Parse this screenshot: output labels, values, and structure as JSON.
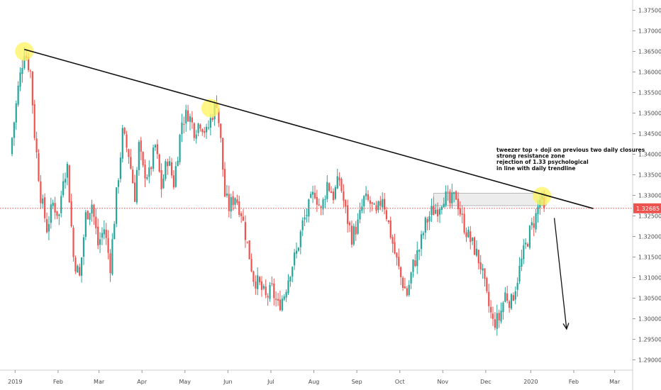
{
  "chart_data": {
    "type": "candlestick",
    "instrument_note": "",
    "x_ticks": [
      "2019",
      "Feb",
      "Mar",
      "Apr",
      "May",
      "Jun",
      "Jul",
      "Aug",
      "Sep",
      "Oct",
      "Nov",
      "Dec",
      "2020",
      "Feb",
      "Mar"
    ],
    "y_ticks": [
      "1.29000",
      "1.29500",
      "1.30000",
      "1.30500",
      "1.31000",
      "1.31500",
      "1.32000",
      "1.32500",
      "1.33000",
      "1.33500",
      "1.34000",
      "1.34500",
      "1.35000",
      "1.35500",
      "1.36000",
      "1.36500",
      "1.37000",
      "1.37500"
    ],
    "ylim": [
      1.2875,
      1.3775
    ],
    "current_price": "1.32685",
    "current_price_value": 1.32685,
    "price_path": [
      [
        0,
        1.34
      ],
      [
        4,
        1.356
      ],
      [
        7,
        1.3655
      ],
      [
        10,
        1.36
      ],
      [
        12,
        1.345
      ],
      [
        15,
        1.33
      ],
      [
        18,
        1.322
      ],
      [
        21,
        1.328
      ],
      [
        24,
        1.325
      ],
      [
        26,
        1.335
      ],
      [
        28,
        1.337
      ],
      [
        31,
        1.315
      ],
      [
        34,
        1.31
      ],
      [
        37,
        1.325
      ],
      [
        40,
        1.328
      ],
      [
        43,
        1.318
      ],
      [
        46,
        1.322
      ],
      [
        49,
        1.313
      ],
      [
        52,
        1.33
      ],
      [
        55,
        1.345
      ],
      [
        58,
        1.34
      ],
      [
        61,
        1.33
      ],
      [
        63,
        1.342
      ],
      [
        65,
        1.336
      ],
      [
        68,
        1.335
      ],
      [
        71,
        1.342
      ],
      [
        74,
        1.332
      ],
      [
        77,
        1.339
      ],
      [
        80,
        1.333
      ],
      [
        84,
        1.348
      ],
      [
        87,
        1.35
      ],
      [
        90,
        1.346
      ],
      [
        93,
        1.348
      ],
      [
        96,
        1.345
      ],
      [
        99,
        1.35
      ],
      [
        101,
        1.353
      ],
      [
        103,
        1.343
      ],
      [
        105,
        1.33
      ],
      [
        107,
        1.327
      ],
      [
        110,
        1.33
      ],
      [
        113,
        1.326
      ],
      [
        116,
        1.318
      ],
      [
        119,
        1.31
      ],
      [
        122,
        1.308
      ],
      [
        125,
        1.305
      ],
      [
        128,
        1.307
      ],
      [
        131,
        1.303
      ],
      [
        134,
        1.306
      ],
      [
        137,
        1.312
      ],
      [
        140,
        1.316
      ],
      [
        143,
        1.323
      ],
      [
        146,
        1.327
      ],
      [
        149,
        1.331
      ],
      [
        152,
        1.326
      ],
      [
        155,
        1.333
      ],
      [
        158,
        1.33
      ],
      [
        161,
        1.334
      ],
      [
        164,
        1.326
      ],
      [
        167,
        1.32
      ],
      [
        170,
        1.323
      ],
      [
        173,
        1.329
      ],
      [
        176,
        1.328
      ],
      [
        179,
        1.325
      ],
      [
        182,
        1.33
      ],
      [
        185,
        1.323
      ],
      [
        188,
        1.316
      ],
      [
        191,
        1.31
      ],
      [
        194,
        1.306
      ],
      [
        197,
        1.313
      ],
      [
        200,
        1.317
      ],
      [
        203,
        1.323
      ],
      [
        206,
        1.326
      ],
      [
        209,
        1.327
      ],
      [
        212,
        1.33
      ],
      [
        215,
        1.328
      ],
      [
        218,
        1.33
      ],
      [
        221,
        1.324
      ],
      [
        224,
        1.32
      ],
      [
        227,
        1.317
      ],
      [
        230,
        1.313
      ],
      [
        233,
        1.305
      ],
      [
        236,
        1.299
      ],
      [
        239,
        1.3
      ],
      [
        242,
        1.306
      ],
      [
        245,
        1.304
      ],
      [
        248,
        1.31
      ],
      [
        251,
        1.316
      ],
      [
        254,
        1.321
      ],
      [
        257,
        1.325
      ],
      [
        259,
        1.329
      ],
      [
        261,
        1.3268
      ]
    ],
    "trendline": [
      [
        7,
        1.3655
      ],
      [
        285,
        1.3268
      ]
    ],
    "resistance_zone": {
      "x_start": 207,
      "x_end": 262,
      "y_low": 1.3275,
      "y_high": 1.3305
    },
    "highlight_circles": [
      [
        7,
        1.365
      ],
      [
        98,
        1.3512
      ],
      [
        260,
        1.3298
      ]
    ],
    "projection_arrow": {
      "from": [
        266,
        1.3245
      ],
      "to": [
        272,
        1.2975
      ]
    },
    "annotation_lines": [
      "tweezer top + doji on previous two daily closures",
      "strong resistance zone",
      "rejection of 1.33 psychological",
      "in line with daily trendline"
    ],
    "x_domain": [
      0,
      292
    ],
    "colors": {
      "up": "#26a69a",
      "down": "#ef5350",
      "price_line": "#ef5350",
      "highlight": "#fff35c"
    }
  }
}
